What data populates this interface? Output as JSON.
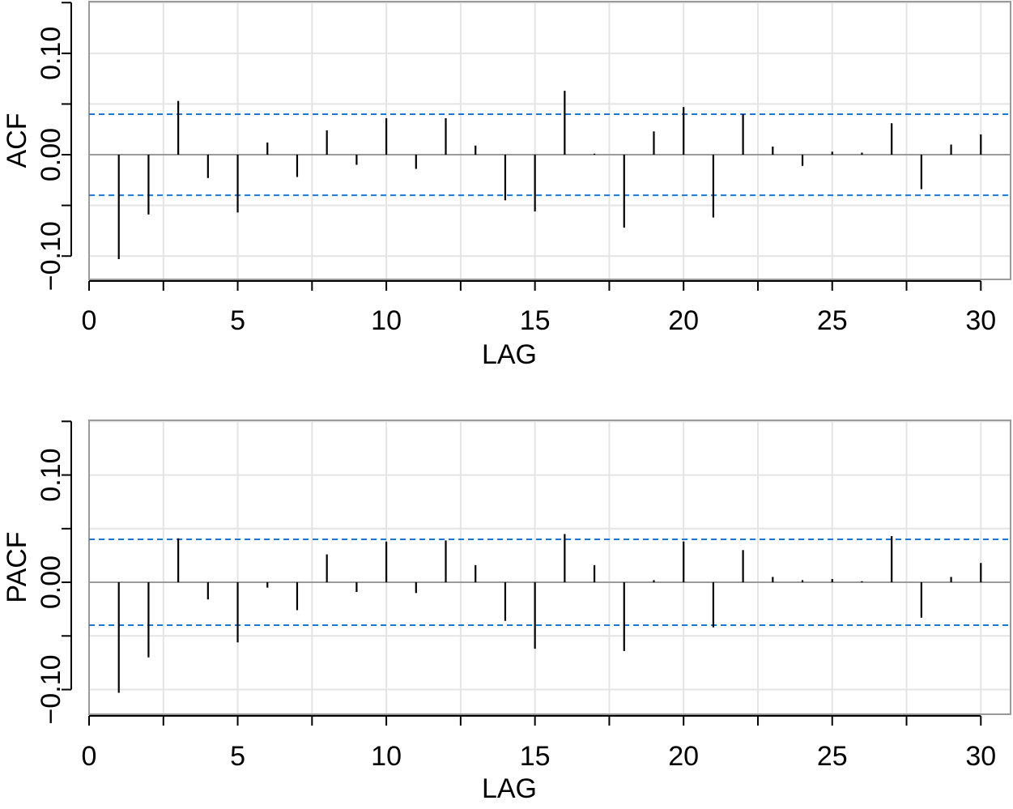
{
  "chart_data": [
    {
      "type": "bar",
      "chart_style": "correlogram",
      "ylabel": "ACF",
      "xlabel": "LAG",
      "xlim": [
        0,
        31
      ],
      "ylim": [
        -0.123,
        0.151
      ],
      "x_ticks": [
        0,
        5,
        10,
        15,
        20,
        25,
        30
      ],
      "x_minor_ticks": [
        2.5,
        7.5,
        12.5,
        17.5,
        22.5,
        27.5
      ],
      "x_tick_labels": [
        "0",
        "5",
        "10",
        "15",
        "20",
        "25",
        "30"
      ],
      "y_ticks": [
        -0.1,
        -0.05,
        0.0,
        0.05,
        0.1,
        0.15
      ],
      "y_tick_labels": [
        "−0.10",
        "",
        "0.00",
        "",
        "0.10",
        ""
      ],
      "grid": true,
      "confidence_bounds": [
        -0.04,
        0.04
      ],
      "lags": [
        1,
        2,
        3,
        4,
        5,
        6,
        7,
        8,
        9,
        10,
        11,
        12,
        13,
        14,
        15,
        16,
        17,
        18,
        19,
        20,
        21,
        22,
        23,
        24,
        25,
        26,
        27,
        28,
        29,
        30
      ],
      "values": [
        -0.103,
        -0.059,
        0.053,
        -0.023,
        -0.057,
        0.012,
        -0.022,
        0.024,
        -0.01,
        0.036,
        -0.014,
        0.036,
        0.009,
        -0.045,
        -0.056,
        0.063,
        0.001,
        -0.072,
        0.023,
        0.047,
        -0.062,
        0.04,
        0.008,
        -0.011,
        0.003,
        0.002,
        0.031,
        -0.034,
        0.01,
        0.02
      ]
    },
    {
      "type": "bar",
      "chart_style": "correlogram",
      "ylabel": "PACF",
      "xlabel": "LAG",
      "xlim": [
        0,
        31
      ],
      "ylim": [
        -0.123,
        0.151
      ],
      "x_ticks": [
        0,
        5,
        10,
        15,
        20,
        25,
        30
      ],
      "x_minor_ticks": [
        2.5,
        7.5,
        12.5,
        17.5,
        22.5,
        27.5
      ],
      "x_tick_labels": [
        "0",
        "5",
        "10",
        "15",
        "20",
        "25",
        "30"
      ],
      "y_ticks": [
        -0.1,
        -0.05,
        0.0,
        0.05,
        0.1,
        0.15
      ],
      "y_tick_labels": [
        "−0.10",
        "",
        "0.00",
        "",
        "0.10",
        ""
      ],
      "grid": true,
      "confidence_bounds": [
        -0.04,
        0.04
      ],
      "lags": [
        1,
        2,
        3,
        4,
        5,
        6,
        7,
        8,
        9,
        10,
        11,
        12,
        13,
        14,
        15,
        16,
        17,
        18,
        19,
        20,
        21,
        22,
        23,
        24,
        25,
        26,
        27,
        28,
        29,
        30
      ],
      "values": [
        -0.103,
        -0.07,
        0.041,
        -0.016,
        -0.056,
        -0.005,
        -0.026,
        0.026,
        -0.009,
        0.038,
        -0.01,
        0.039,
        0.016,
        -0.036,
        -0.062,
        0.045,
        0.016,
        -0.064,
        0.002,
        0.038,
        -0.042,
        0.03,
        0.005,
        0.002,
        0.003,
        0.001,
        0.043,
        -0.033,
        0.005,
        0.018
      ]
    }
  ]
}
